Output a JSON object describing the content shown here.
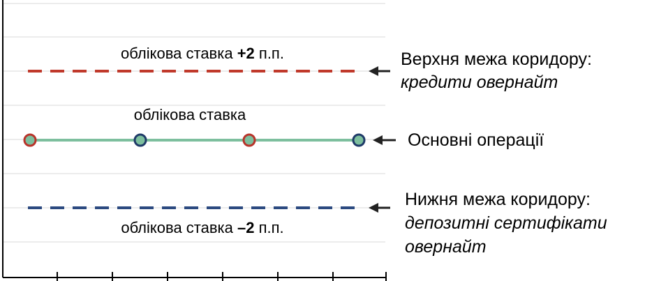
{
  "upper": {
    "label_prefix": "облікова ставка ",
    "label_bold": "+2",
    "label_suffix": " п.п.",
    "title": "Верхня межа коридору:",
    "subtitle": "кредити овернайт",
    "color": "#c0392b"
  },
  "main": {
    "label": "облікова ставка",
    "title": "Основні операції",
    "line_color": "#7dbf9e",
    "marker_red": "#b8332a",
    "marker_blue": "#1f3a68"
  },
  "lower": {
    "label_prefix": "облікова ставка ",
    "label_bold": "–2",
    "label_suffix": " п.п.",
    "title": "Нижня межа коридору:",
    "subtitle_line1": "депозитні сертифікати",
    "subtitle_line2": "овернайт",
    "color": "#2c4a80"
  }
}
